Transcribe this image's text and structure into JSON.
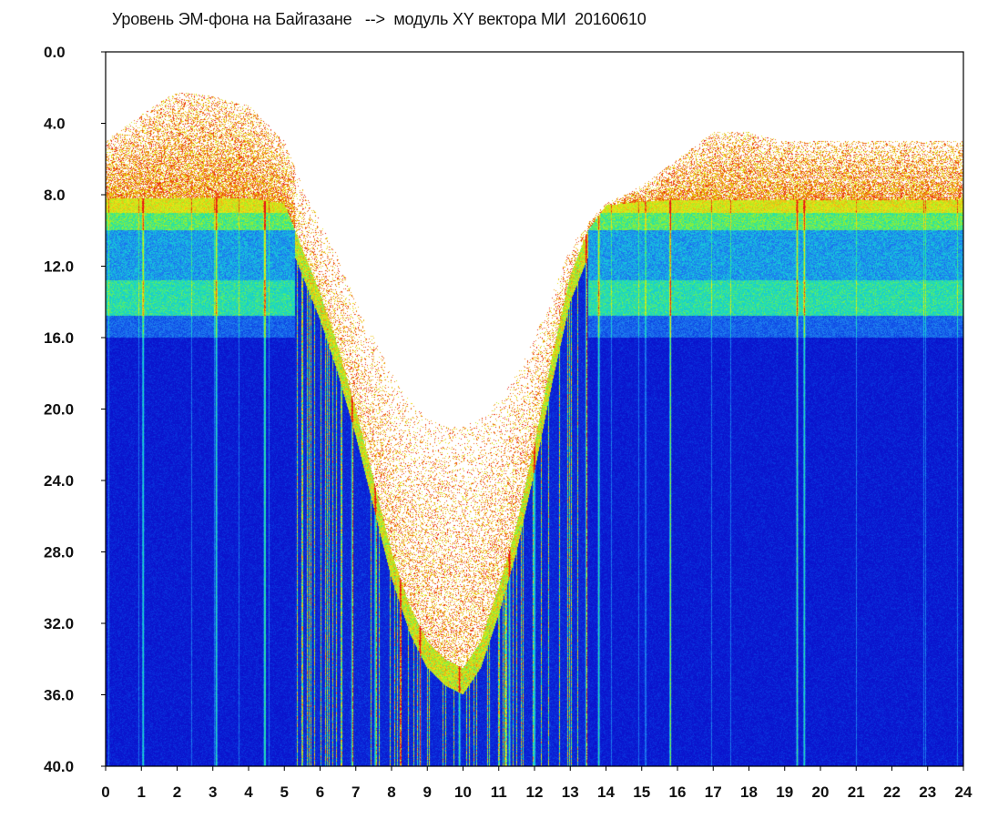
{
  "chart_data": {
    "type": "heatmap",
    "title": "Уровень ЭМ-фона на Байгазане   -->  модуль XY вектора МИ  20160610",
    "xlabel": "",
    "ylabel": "",
    "xlim": [
      0,
      24
    ],
    "ylim": [
      40.0,
      0.0
    ],
    "x_ticks": [
      "0",
      "1",
      "2",
      "3",
      "4",
      "5",
      "6",
      "7",
      "8",
      "9",
      "10",
      "11",
      "12",
      "13",
      "14",
      "15",
      "16",
      "17",
      "18",
      "19",
      "20",
      "21",
      "22",
      "23",
      "24"
    ],
    "y_ticks": [
      "0.0",
      "4.0",
      "8.0",
      "12.0",
      "16.0",
      "20.0",
      "24.0",
      "28.0",
      "32.0",
      "36.0",
      "40.0"
    ],
    "colormap": [
      "#0a0ac8",
      "#0a38e0",
      "#1e78f0",
      "#16c8dc",
      "#28e6a0",
      "#9af028",
      "#f0e614",
      "#f07814",
      "#e61414"
    ],
    "description_envelope": {
      "hours": [
        0,
        1,
        2,
        3,
        4,
        5,
        5.5,
        6,
        6.5,
        7,
        7.5,
        8,
        8.5,
        9,
        9.5,
        10,
        10.5,
        11,
        11.5,
        12,
        12.5,
        13,
        13.5,
        14,
        15,
        16,
        17,
        18,
        19,
        20,
        21,
        22,
        23,
        24
      ],
      "upper_edge": [
        5.0,
        3.5,
        2.2,
        2.5,
        3.0,
        5.0,
        7.5,
        9.5,
        11.5,
        14.0,
        16.0,
        18.0,
        19.5,
        20.5,
        21.0,
        21.0,
        20.5,
        19.5,
        18.0,
        16.0,
        13.5,
        11.0,
        9.5,
        8.5,
        7.5,
        6.0,
        4.5,
        4.5,
        5.0,
        5.0,
        5.0,
        5.0,
        5.0,
        5.0
      ],
      "dense_edge": [
        8.2,
        8.2,
        8.2,
        8.2,
        8.2,
        8.5,
        11.0,
        13.5,
        16.5,
        20.0,
        24.0,
        28.0,
        31.0,
        33.0,
        34.0,
        34.5,
        33.0,
        30.0,
        26.5,
        22.0,
        17.0,
        12.5,
        10.0,
        8.6,
        8.4,
        8.3,
        8.3,
        8.3,
        8.3,
        8.3,
        8.3,
        8.3,
        8.3,
        8.3
      ]
    },
    "bright_lines_hours": [
      1.05,
      3.1,
      4.45,
      6.9,
      7.55,
      8.25,
      8.8,
      9.9,
      11.3,
      12.0,
      13.45,
      13.8,
      15.8,
      19.35,
      19.55
    ]
  }
}
